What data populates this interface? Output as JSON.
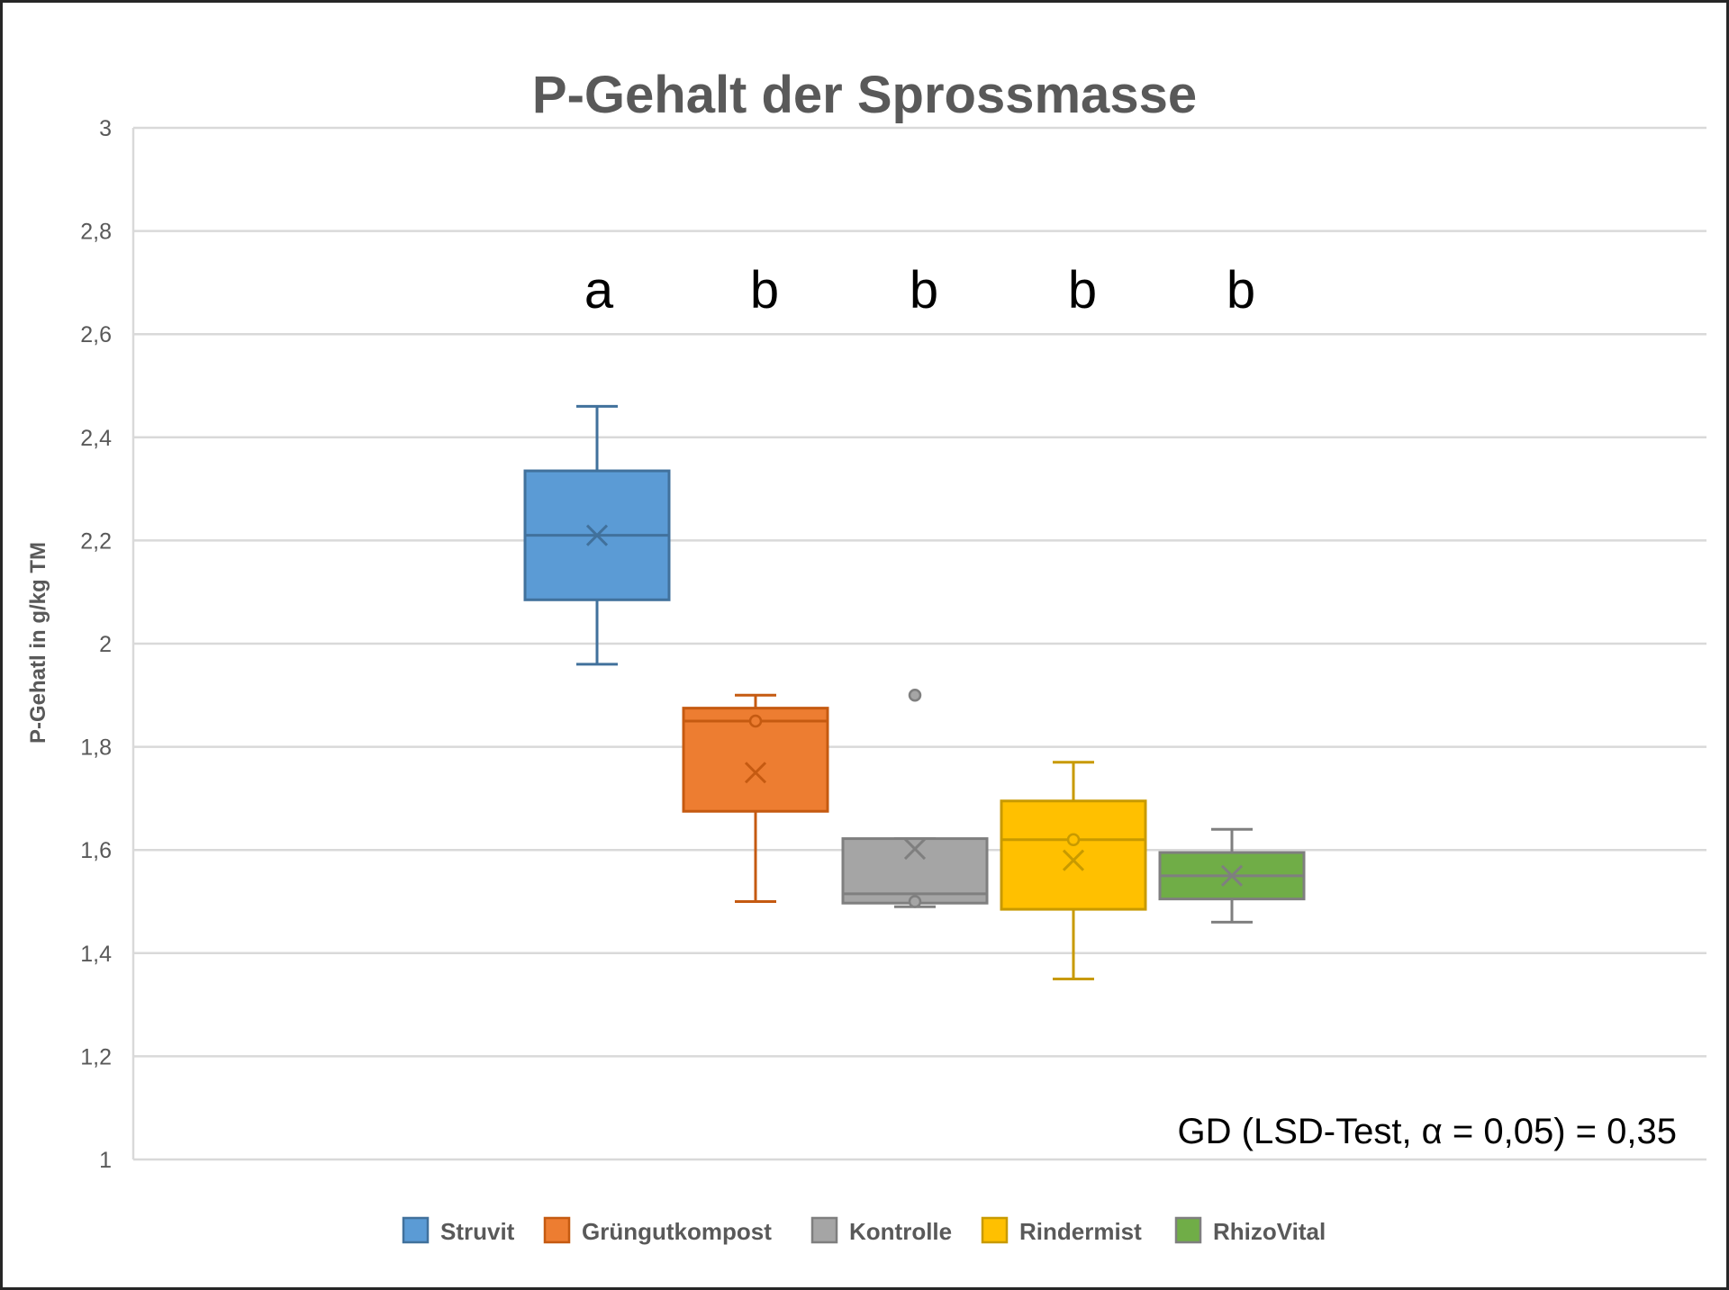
{
  "chart_data": {
    "type": "boxplot",
    "title": "P-Gehalt der Sprossmasse",
    "xlabel": "",
    "ylabel": "P-Gehatl in g/kg TM",
    "ylim": [
      1,
      3
    ],
    "yticks": [
      1,
      1.2,
      1.4,
      1.6,
      1.8,
      2,
      2.2,
      2.4,
      2.6,
      2.8,
      3
    ],
    "ytick_labels": [
      "1",
      "1,2",
      "1,4",
      "1,6",
      "1,8",
      "2",
      "2,2",
      "2,4",
      "2,6",
      "2,8",
      "3"
    ],
    "grid": true,
    "legend_position": "bottom",
    "series": [
      {
        "name": "Struvit",
        "color": "#5B9BD5",
        "edge": "#41719C",
        "whisker_low": 1.96,
        "q1": 2.085,
        "median": 2.21,
        "q3": 2.335,
        "whisker_high": 2.46,
        "mean": 2.21,
        "inner_points": [],
        "outliers": [],
        "letter": "a"
      },
      {
        "name": "Grüngutkompost",
        "color": "#ED7D31",
        "edge": "#C55A11",
        "whisker_low": 1.5,
        "q1": 1.675,
        "median": 1.85,
        "q3": 1.875,
        "whisker_high": 1.9,
        "mean": 1.75,
        "inner_points": [
          1.85
        ],
        "outliers": [],
        "letter": "b"
      },
      {
        "name": "Kontrolle",
        "color": "#A5A5A5",
        "edge": "#7F7F7F",
        "whisker_low": 1.49,
        "q1": 1.497,
        "median": 1.515,
        "q3": 1.622,
        "whisker_high": 1.622,
        "mean": 1.602,
        "inner_points": [
          1.5
        ],
        "outliers": [
          1.9
        ],
        "letter": "b"
      },
      {
        "name": "Rindermist",
        "color": "#FFC000",
        "edge": "#C89A00",
        "whisker_low": 1.35,
        "q1": 1.485,
        "median": 1.62,
        "q3": 1.695,
        "whisker_high": 1.77,
        "mean": 1.58,
        "inner_points": [
          1.62
        ],
        "outliers": [],
        "letter": "b"
      },
      {
        "name": "RhizoVital",
        "color": "#70AD47",
        "edge": "#7F7F7F",
        "whisker_low": 1.46,
        "q1": 1.505,
        "median": 1.55,
        "q3": 1.595,
        "whisker_high": 1.64,
        "mean": 1.55,
        "inner_points": [],
        "outliers": [],
        "letter": "b"
      }
    ],
    "annotations": [
      "GD (LSD-Test, α = 0,05) = 0,35"
    ]
  }
}
